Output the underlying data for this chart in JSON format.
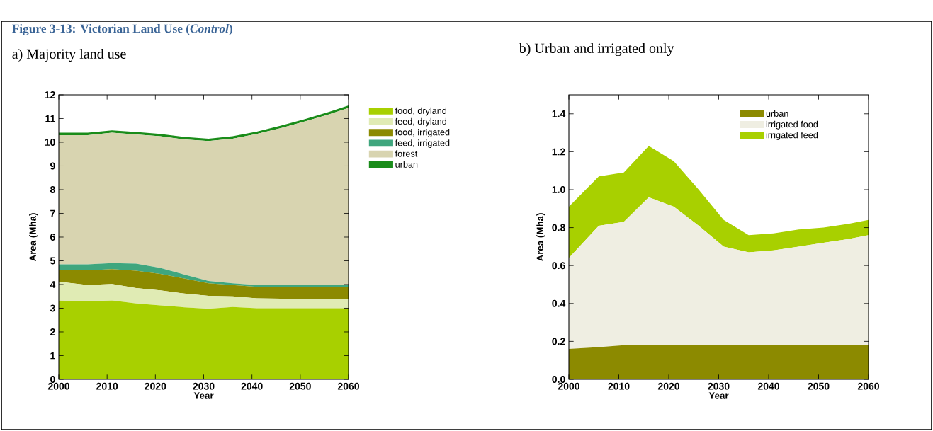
{
  "chart_data": [
    {
      "type": "area",
      "title": "Figure 3-13: Victorian Land Use (*Control*)",
      "subtitle": "a) Majority land use",
      "xlabel": "Year",
      "ylabel": "Area (Mha)",
      "stacked": true,
      "legend": "right",
      "x": [
        2000,
        2006,
        2011,
        2016,
        2021,
        2026,
        2031,
        2036,
        2041,
        2046,
        2051,
        2056,
        2060
      ],
      "xlim": [
        2000,
        2060
      ],
      "ylim": [
        0,
        12
      ],
      "xticks": [
        2000,
        2010,
        2020,
        2030,
        2040,
        2050,
        2060
      ],
      "yticks": [
        0,
        1,
        2,
        3,
        4,
        5,
        6,
        7,
        8,
        9,
        10,
        11,
        12
      ],
      "series": [
        {
          "name": "food, dryland",
          "color": "#a8d000",
          "values": [
            3.32,
            3.28,
            3.33,
            3.2,
            3.12,
            3.04,
            2.98,
            3.05,
            3.0,
            3.0,
            3.0,
            3.0,
            3.0
          ]
        },
        {
          "name": "feed, dryland",
          "color": "#e0ebb4",
          "values": [
            0.8,
            0.7,
            0.69,
            0.65,
            0.63,
            0.58,
            0.54,
            0.45,
            0.42,
            0.4,
            0.4,
            0.38,
            0.37
          ]
        },
        {
          "name": "food, irrigated",
          "color": "#8c8a00",
          "values": [
            0.48,
            0.62,
            0.63,
            0.73,
            0.7,
            0.63,
            0.53,
            0.48,
            0.48,
            0.5,
            0.5,
            0.52,
            0.53
          ]
        },
        {
          "name": "feed, irrigated",
          "color": "#3fa67e",
          "values": [
            0.25,
            0.25,
            0.25,
            0.3,
            0.25,
            0.17,
            0.1,
            0.07,
            0.08,
            0.08,
            0.08,
            0.08,
            0.08
          ]
        },
        {
          "name": "forest",
          "color": "#d8d4b0",
          "values": [
            5.45,
            5.45,
            5.5,
            5.45,
            5.55,
            5.7,
            5.9,
            6.1,
            6.37,
            6.62,
            6.9,
            7.2,
            7.47
          ]
        },
        {
          "name": "urban",
          "color": "#1a8c1a",
          "values": [
            0.1,
            0.1,
            0.1,
            0.1,
            0.1,
            0.1,
            0.1,
            0.1,
            0.1,
            0.1,
            0.1,
            0.1,
            0.1
          ]
        }
      ]
    },
    {
      "type": "area",
      "subtitle": "b) Urban and irrigated only",
      "xlabel": "Year",
      "ylabel": "Area (Mha)",
      "stacked": true,
      "legend": "top right",
      "x": [
        2000,
        2006,
        2011,
        2016,
        2021,
        2026,
        2031,
        2036,
        2041,
        2046,
        2051,
        2056,
        2060
      ],
      "xlim": [
        2000,
        2060
      ],
      "ylim": [
        0,
        1.5
      ],
      "xticks": [
        2000,
        2010,
        2020,
        2030,
        2040,
        2050,
        2060
      ],
      "yticks": [
        {
          "value": 0,
          "label": "0.0"
        },
        {
          "value": 0.2,
          "label": "0.2"
        },
        {
          "value": 0.4,
          "label": "0.4"
        },
        {
          "value": 0.6,
          "label": "0.6"
        },
        {
          "value": 0.8,
          "label": "0.8"
        },
        {
          "value": 1.0,
          "label": "1.0"
        },
        {
          "value": 1.2,
          "label": "1.2"
        },
        {
          "value": 1.4,
          "label": "1.4"
        }
      ],
      "series": [
        {
          "name": "urban",
          "color": "#8c8a00",
          "values": [
            0.16,
            0.17,
            0.18,
            0.18,
            0.18,
            0.18,
            0.18,
            0.18,
            0.18,
            0.18,
            0.18,
            0.18,
            0.18
          ]
        },
        {
          "name": "irrigated food",
          "color": "#efeee2",
          "values": [
            0.48,
            0.64,
            0.65,
            0.78,
            0.73,
            0.63,
            0.52,
            0.49,
            0.5,
            0.52,
            0.54,
            0.56,
            0.58
          ]
        },
        {
          "name": "irrigated feed",
          "color": "#a8d000",
          "values": [
            0.27,
            0.26,
            0.26,
            0.27,
            0.24,
            0.19,
            0.14,
            0.09,
            0.09,
            0.09,
            0.08,
            0.08,
            0.08
          ]
        }
      ]
    }
  ]
}
